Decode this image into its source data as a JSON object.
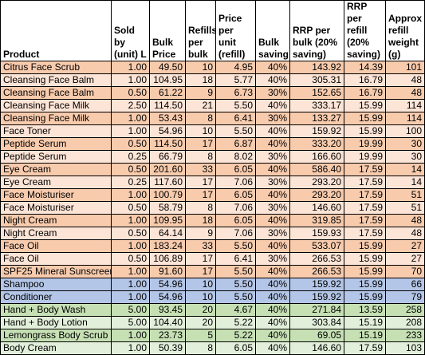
{
  "headers": {
    "product": "Product",
    "sold_by": "Sold by (unit) L",
    "bulk_price": "Bulk Price",
    "refills": "Refills per bulk",
    "price_per_unit": "Price per unit (refill)",
    "bulk_saving": "Bulk saving",
    "rrp_bulk": "RRP per bulk (20% saving)",
    "rrp_refill": "RRP per refill (20% saving)",
    "refill_weight": "Approx refill weight (g)"
  },
  "colors": {
    "face_dark": "#f8cbad",
    "face_light": "#fce4d6",
    "hair": "#b4c6e7",
    "body_dark": "#c6e0b4",
    "body_light": "#e2efda"
  },
  "rows": [
    {
      "product": "Citrus Face Scrub",
      "sold_by": "1.00",
      "bulk_price": "49.50",
      "refills": "10",
      "price_per_unit": "4.95",
      "bulk_saving": "40%",
      "rrp_bulk": "143.92",
      "rrp_refill": "14.39",
      "refill_weight": "101"
    },
    {
      "product": "Cleansing Face Balm",
      "sold_by": "1.00",
      "bulk_price": "104.95",
      "refills": "18",
      "price_per_unit": "5.77",
      "bulk_saving": "40%",
      "rrp_bulk": "305.31",
      "rrp_refill": "16.79",
      "refill_weight": "48"
    },
    {
      "product": "Cleansing Face Balm",
      "sold_by": "0.50",
      "bulk_price": "61.22",
      "refills": "9",
      "price_per_unit": "6.73",
      "bulk_saving": "30%",
      "rrp_bulk": "152.65",
      "rrp_refill": "16.79",
      "refill_weight": "48"
    },
    {
      "product": "Cleansing Face Milk",
      "sold_by": "2.50",
      "bulk_price": "114.50",
      "refills": "21",
      "price_per_unit": "5.50",
      "bulk_saving": "40%",
      "rrp_bulk": "333.17",
      "rrp_refill": "15.99",
      "refill_weight": "114"
    },
    {
      "product": "Cleansing Face Milk",
      "sold_by": "1.00",
      "bulk_price": "53.43",
      "refills": "8",
      "price_per_unit": "6.41",
      "bulk_saving": "30%",
      "rrp_bulk": "133.27",
      "rrp_refill": "15.99",
      "refill_weight": "114"
    },
    {
      "product": "Face Toner",
      "sold_by": "1.00",
      "bulk_price": "54.96",
      "refills": "10",
      "price_per_unit": "5.50",
      "bulk_saving": "40%",
      "rrp_bulk": "159.92",
      "rrp_refill": "15.99",
      "refill_weight": "100"
    },
    {
      "product": "Peptide Serum",
      "sold_by": "0.50",
      "bulk_price": "114.50",
      "refills": "17",
      "price_per_unit": "6.87",
      "bulk_saving": "40%",
      "rrp_bulk": "333.20",
      "rrp_refill": "19.99",
      "refill_weight": "30"
    },
    {
      "product": "Peptide Serum",
      "sold_by": "0.25",
      "bulk_price": "66.79",
      "refills": "8",
      "price_per_unit": "8.02",
      "bulk_saving": "30%",
      "rrp_bulk": "166.60",
      "rrp_refill": "19.99",
      "refill_weight": "30"
    },
    {
      "product": "Eye Cream",
      "sold_by": "0.50",
      "bulk_price": "201.60",
      "refills": "33",
      "price_per_unit": "6.05",
      "bulk_saving": "40%",
      "rrp_bulk": "586.40",
      "rrp_refill": "17.59",
      "refill_weight": "14"
    },
    {
      "product": "Eye Cream",
      "sold_by": "0.25",
      "bulk_price": "117.60",
      "refills": "17",
      "price_per_unit": "7.06",
      "bulk_saving": "30%",
      "rrp_bulk": "293.20",
      "rrp_refill": "17.59",
      "refill_weight": "14"
    },
    {
      "product": "Face Moisturiser",
      "sold_by": "1.00",
      "bulk_price": "100.79",
      "refills": "17",
      "price_per_unit": "6.05",
      "bulk_saving": "40%",
      "rrp_bulk": "293.20",
      "rrp_refill": "17.59",
      "refill_weight": "51"
    },
    {
      "product": "Face Moisturiser",
      "sold_by": "0.50",
      "bulk_price": "58.79",
      "refills": "8",
      "price_per_unit": "7.06",
      "bulk_saving": "30%",
      "rrp_bulk": "146.60",
      "rrp_refill": "17.59",
      "refill_weight": "51"
    },
    {
      "product": "Night Cream",
      "sold_by": "1.00",
      "bulk_price": "109.95",
      "refills": "18",
      "price_per_unit": "6.05",
      "bulk_saving": "40%",
      "rrp_bulk": "319.85",
      "rrp_refill": "17.59",
      "refill_weight": "48"
    },
    {
      "product": "Night Cream",
      "sold_by": "0.50",
      "bulk_price": "64.14",
      "refills": "9",
      "price_per_unit": "7.06",
      "bulk_saving": "30%",
      "rrp_bulk": "159.93",
      "rrp_refill": "17.59",
      "refill_weight": "48"
    },
    {
      "product": "Face Oil",
      "sold_by": "1.00",
      "bulk_price": "183.24",
      "refills": "33",
      "price_per_unit": "5.50",
      "bulk_saving": "40%",
      "rrp_bulk": "533.07",
      "rrp_refill": "15.99",
      "refill_weight": "27"
    },
    {
      "product": "Face Oil",
      "sold_by": "0.50",
      "bulk_price": "106.89",
      "refills": "17",
      "price_per_unit": "6.41",
      "bulk_saving": "30%",
      "rrp_bulk": "266.53",
      "rrp_refill": "15.99",
      "refill_weight": "27"
    },
    {
      "product": "SPF25 Mineral Sunscreen",
      "sold_by": "1.00",
      "bulk_price": "91.60",
      "refills": "17",
      "price_per_unit": "5.50",
      "bulk_saving": "40%",
      "rrp_bulk": "266.53",
      "rrp_refill": "15.99",
      "refill_weight": "70"
    },
    {
      "product": "Shampoo",
      "sold_by": "1.00",
      "bulk_price": "54.96",
      "refills": "10",
      "price_per_unit": "5.50",
      "bulk_saving": "40%",
      "rrp_bulk": "159.92",
      "rrp_refill": "15.99",
      "refill_weight": "66"
    },
    {
      "product": "Conditioner",
      "sold_by": "1.00",
      "bulk_price": "54.96",
      "refills": "10",
      "price_per_unit": "5.50",
      "bulk_saving": "40%",
      "rrp_bulk": "159.92",
      "rrp_refill": "15.99",
      "refill_weight": "79"
    },
    {
      "product": "Hand + Body Wash",
      "sold_by": "5.00",
      "bulk_price": "93.45",
      "refills": "20",
      "price_per_unit": "4.67",
      "bulk_saving": "40%",
      "rrp_bulk": "271.84",
      "rrp_refill": "13.59",
      "refill_weight": "258"
    },
    {
      "product": "Hand + Body Lotion",
      "sold_by": "5.00",
      "bulk_price": "104.40",
      "refills": "20",
      "price_per_unit": "5.22",
      "bulk_saving": "40%",
      "rrp_bulk": "303.84",
      "rrp_refill": "15.19",
      "refill_weight": "208"
    },
    {
      "product": "Lemongrass Body Scrub",
      "sold_by": "1.00",
      "bulk_price": "23.73",
      "refills": "5",
      "price_per_unit": "5.22",
      "bulk_saving": "40%",
      "rrp_bulk": "69.05",
      "rrp_refill": "15.19",
      "refill_weight": "233"
    },
    {
      "product": "Body Cream",
      "sold_by": "1.00",
      "bulk_price": "50.39",
      "refills": "8",
      "price_per_unit": "6.05",
      "bulk_saving": "40%",
      "rrp_bulk": "146.60",
      "rrp_refill": "17.59",
      "refill_weight": "103"
    }
  ]
}
